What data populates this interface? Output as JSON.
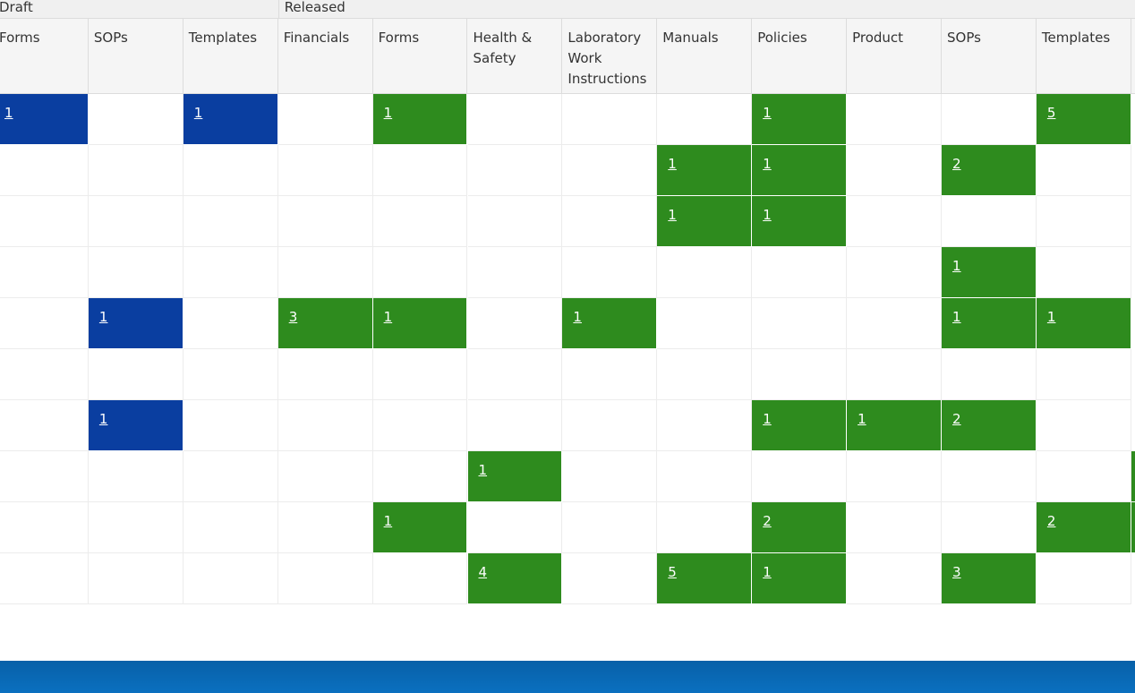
{
  "groups": [
    {
      "label": "Draft",
      "start_col": 0,
      "span": 3
    },
    {
      "label": "Released",
      "start_col": 3,
      "span": 9
    }
  ],
  "columns": [
    {
      "label": "Forms",
      "status": "draft"
    },
    {
      "label": "SOPs",
      "status": "draft"
    },
    {
      "label": "Templates",
      "status": "draft"
    },
    {
      "label": "Financials",
      "status": "released"
    },
    {
      "label": "Forms",
      "status": "released"
    },
    {
      "label": "Health &\nSafety",
      "status": "released"
    },
    {
      "label": "Laboratory\nWork\nInstructions",
      "status": "released"
    },
    {
      "label": "Manuals",
      "status": "released"
    },
    {
      "label": "Policies",
      "status": "released"
    },
    {
      "label": "Product",
      "status": "released"
    },
    {
      "label": "SOPs",
      "status": "released"
    },
    {
      "label": "Templates",
      "status": "released"
    }
  ],
  "rows": [
    [
      "1",
      "",
      "1",
      "",
      "1",
      "",
      "",
      "",
      "1",
      "",
      "",
      "5"
    ],
    [
      "",
      "",
      "",
      "",
      "",
      "",
      "",
      "1",
      "1",
      "",
      "2",
      ""
    ],
    [
      "",
      "",
      "",
      "",
      "",
      "",
      "",
      "1",
      "1",
      "",
      "",
      ""
    ],
    [
      "",
      "",
      "",
      "",
      "",
      "",
      "",
      "",
      "",
      "",
      "1",
      ""
    ],
    [
      "",
      "1",
      "",
      "3",
      "1",
      "",
      "1",
      "",
      "",
      "",
      "1",
      "1"
    ],
    [
      "",
      "",
      "",
      "",
      "",
      "",
      "",
      "",
      "",
      "",
      "",
      ""
    ],
    [
      "",
      "1",
      "",
      "",
      "",
      "",
      "",
      "",
      "1",
      "1",
      "2",
      ""
    ],
    [
      "",
      "",
      "",
      "",
      "",
      "1",
      "",
      "",
      "",
      "",
      "",
      ""
    ],
    [
      "",
      "",
      "",
      "",
      "1",
      "",
      "",
      "",
      "2",
      "",
      "",
      "2"
    ],
    [
      "",
      "",
      "",
      "",
      "",
      "4",
      "",
      "5",
      "1",
      "",
      "3",
      ""
    ]
  ],
  "edge_slivers": [
    7,
    8
  ],
  "colors": {
    "draft": "#0a3ea0",
    "released": "#2e8b1e",
    "footer": "#0a66b4"
  }
}
